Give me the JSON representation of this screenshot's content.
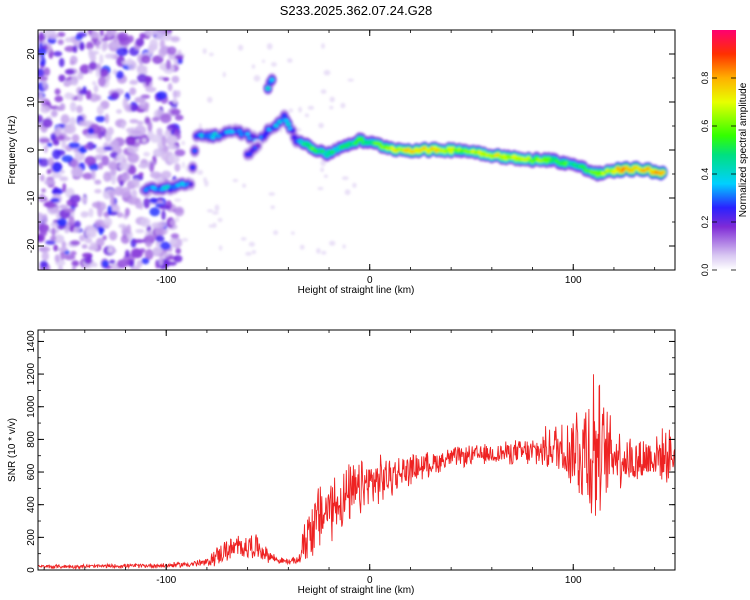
{
  "title": "S233.2025.362.07.24.G28",
  "chart_data": [
    {
      "type": "heatmap",
      "name": "spectrogram",
      "xlabel": "Height of straight line (km)",
      "ylabel": "Frequency (Hz)",
      "xlim": [
        -163,
        150
      ],
      "ylim": [
        -25,
        25
      ],
      "xticks": [
        -100,
        0,
        100
      ],
      "yticks": [
        -20,
        -10,
        0,
        10,
        20
      ],
      "colorbar": {
        "label": "Normalized spectral amplitude",
        "range": [
          0.0,
          1.0
        ],
        "ticks": [
          0.0,
          0.2,
          0.4,
          0.6,
          0.8
        ]
      },
      "noise_region": {
        "x_range": [
          -163,
          -93
        ],
        "y_range": [
          -25,
          25
        ],
        "amplitude": 0.15
      },
      "signal_track": [
        {
          "x": -110,
          "y": -8,
          "a": 0.3
        },
        {
          "x": -100,
          "y": -8,
          "a": 0.35
        },
        {
          "x": -88,
          "y": -7,
          "a": 0.3
        },
        {
          "x": -85,
          "y": 3,
          "a": 0.35
        },
        {
          "x": -75,
          "y": 3,
          "a": 0.35
        },
        {
          "x": -65,
          "y": 4,
          "a": 0.3
        },
        {
          "x": -55,
          "y": 2,
          "a": 0.28
        },
        {
          "x": -42,
          "y": 7,
          "a": 0.35
        },
        {
          "x": -36,
          "y": 2,
          "a": 0.3
        },
        {
          "x": -30,
          "y": 1,
          "a": 0.55
        },
        {
          "x": -22,
          "y": -1,
          "a": 0.45
        },
        {
          "x": -12,
          "y": 1,
          "a": 0.45
        },
        {
          "x": -5,
          "y": 2,
          "a": 0.5
        },
        {
          "x": 5,
          "y": 1,
          "a": 0.55
        },
        {
          "x": 15,
          "y": 0,
          "a": 0.7
        },
        {
          "x": 30,
          "y": 0,
          "a": 0.75
        },
        {
          "x": 45,
          "y": 0,
          "a": 0.6
        },
        {
          "x": 60,
          "y": -1,
          "a": 0.7
        },
        {
          "x": 75,
          "y": -2,
          "a": 0.65
        },
        {
          "x": 88,
          "y": -2,
          "a": 0.55
        },
        {
          "x": 100,
          "y": -3,
          "a": 0.5
        },
        {
          "x": 112,
          "y": -5,
          "a": 0.6
        },
        {
          "x": 125,
          "y": -4,
          "a": 0.8
        },
        {
          "x": 135,
          "y": -4,
          "a": 0.75
        },
        {
          "x": 145,
          "y": -5,
          "a": 0.85
        }
      ],
      "side_tracks": [
        {
          "x": -50,
          "y": 13,
          "a": 0.35
        },
        {
          "x": -47,
          "y": 16,
          "a": 0.3
        },
        {
          "x": -58,
          "y": 0,
          "a": 0.25
        }
      ]
    },
    {
      "type": "line",
      "name": "snr",
      "xlabel": "Height of straight line (km)",
      "ylabel": "SNR (10 * v/v)",
      "xlim": [
        -163,
        150
      ],
      "ylim": [
        0,
        1470
      ],
      "xticks": [
        -100,
        0,
        100
      ],
      "yticks": [
        0,
        200,
        400,
        600,
        800,
        1000,
        1200,
        1400
      ],
      "color": "#ee2222",
      "envelope": {
        "x": [
          -163,
          -140,
          -120,
          -100,
          -90,
          -80,
          -75,
          -70,
          -60,
          -55,
          -50,
          -45,
          -40,
          -35,
          -30,
          -20,
          -10,
          0,
          10,
          20,
          30,
          40,
          50,
          60,
          70,
          80,
          90,
          100,
          105,
          110,
          115,
          120,
          130,
          140,
          150
        ],
        "mean": [
          20,
          22,
          25,
          28,
          35,
          45,
          90,
          120,
          150,
          140,
          90,
          60,
          50,
          60,
          250,
          380,
          450,
          530,
          570,
          620,
          650,
          690,
          700,
          710,
          720,
          720,
          750,
          740,
          750,
          760,
          700,
          720,
          660,
          700,
          700
        ],
        "amp": [
          12,
          12,
          12,
          14,
          18,
          25,
          60,
          70,
          80,
          70,
          40,
          20,
          18,
          25,
          200,
          200,
          180,
          160,
          120,
          90,
          70,
          60,
          60,
          60,
          70,
          90,
          140,
          250,
          400,
          520,
          300,
          200,
          150,
          150,
          150
        ]
      }
    }
  ]
}
